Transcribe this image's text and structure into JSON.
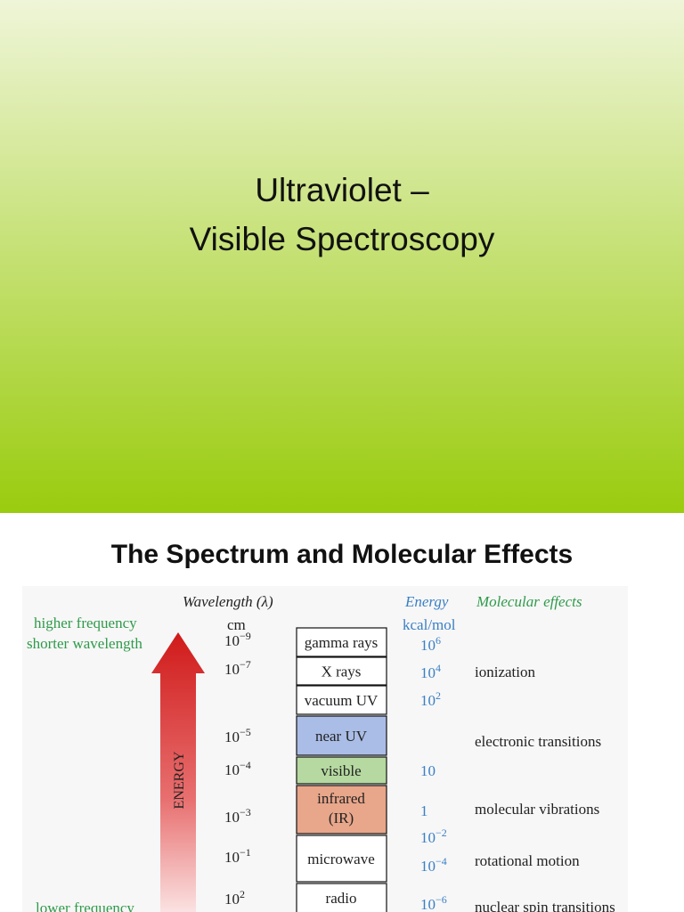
{
  "title_slide": {
    "lines": [
      "Ultraviolet –",
      "Visible Spectroscopy"
    ]
  },
  "spectrum_slide": {
    "title": "The Spectrum and Molecular Effects",
    "figure": {
      "wavelength_header": "Wavelength (λ)",
      "wavelength_unit": "cm",
      "energy_header": "Energy",
      "energy_unit": "kcal/mol",
      "effects_header": "Molecular effects",
      "top_note": [
        "higher frequency",
        "shorter wavelength"
      ],
      "bottom_note": "lower frequency",
      "arrow_label": "ENERGY",
      "regions": [
        "gamma rays",
        "X rays",
        "vacuum UV",
        "near UV",
        "visible",
        [
          "infrared",
          "(IR)"
        ],
        "microwave",
        "radio"
      ],
      "wavelengths": [
        {
          "base": "10",
          "exp": "−9"
        },
        {
          "base": "10",
          "exp": "−7"
        },
        {
          "base": "10",
          "exp": "−5"
        },
        {
          "base": "10",
          "exp": "−4"
        },
        {
          "base": "10",
          "exp": "−3"
        },
        {
          "base": "10",
          "exp": "−1"
        },
        {
          "base": "10",
          "exp": "2"
        }
      ],
      "energies": [
        {
          "base": "10",
          "exp": "6"
        },
        {
          "base": "10",
          "exp": "4"
        },
        {
          "base": "10",
          "exp": "2"
        },
        {
          "base": "10"
        },
        {
          "base": "1"
        },
        {
          "base": "10",
          "exp": "−2"
        },
        {
          "base": "10",
          "exp": "−4"
        },
        {
          "base": "10",
          "exp": "−6"
        }
      ],
      "effects": [
        "ionization",
        "electronic transitions",
        "molecular vibrations",
        "rotational motion",
        "nuclear spin transitions"
      ]
    }
  }
}
